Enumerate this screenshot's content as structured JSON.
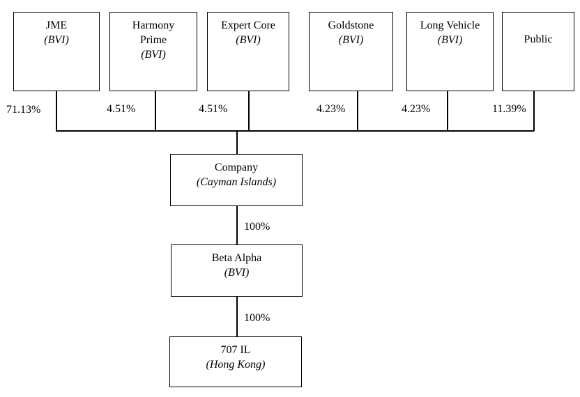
{
  "diagram": {
    "shareholders": [
      {
        "name": "JME",
        "jurisdiction": "(BVI)",
        "ownership": "71.13%"
      },
      {
        "name": "Harmony Prime",
        "jurisdiction": "(BVI)",
        "ownership": "4.51%"
      },
      {
        "name": "Expert Core",
        "jurisdiction": "(BVI)",
        "ownership": "4.51%"
      },
      {
        "name": "Goldstone",
        "jurisdiction": "(BVI)",
        "ownership": "4.23%"
      },
      {
        "name": "Long Vehicle",
        "jurisdiction": "(BVI)",
        "ownership": "4.23%"
      },
      {
        "name": "Public",
        "jurisdiction": "",
        "ownership": "11.39%"
      }
    ],
    "company": {
      "name": "Company",
      "jurisdiction": "(Cayman Islands)"
    },
    "subsidiaries": [
      {
        "name": "Beta Alpha",
        "jurisdiction": "(BVI)",
        "ownership": "100%"
      },
      {
        "name": "707 IL",
        "jurisdiction": "(Hong Kong)",
        "ownership": "100%"
      }
    ],
    "colors": {
      "line": "#000000",
      "background": "#ffffff",
      "text": "#000000"
    }
  }
}
